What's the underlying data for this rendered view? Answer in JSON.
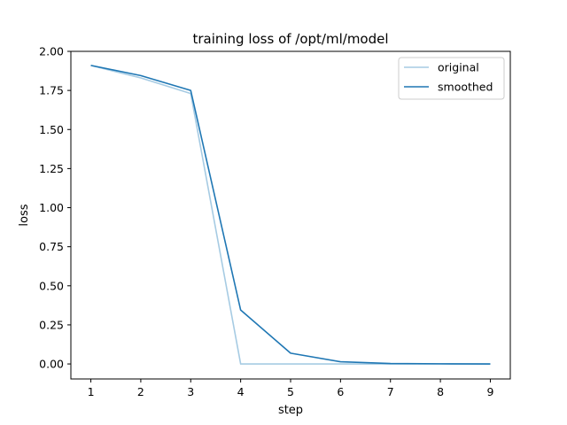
{
  "chart_data": {
    "type": "line",
    "title": "training loss of /opt/ml/model",
    "xlabel": "step",
    "ylabel": "loss",
    "x": [
      1,
      2,
      3,
      4,
      5,
      6,
      7,
      8,
      9
    ],
    "xlim": [
      0.6,
      9.4
    ],
    "ylim": [
      -0.096,
      2.0
    ],
    "xticks": [
      "1",
      "2",
      "3",
      "4",
      "5",
      "6",
      "7",
      "8",
      "9"
    ],
    "yticks": [
      "0.00",
      "0.25",
      "0.50",
      "0.75",
      "1.00",
      "1.25",
      "1.50",
      "1.75",
      "2.00"
    ],
    "grid": false,
    "legend_position": "top-right",
    "series": [
      {
        "name": "original",
        "color": "#a6cbe3",
        "values": [
          1.91,
          1.83,
          1.73,
          0.0,
          0.0,
          0.0,
          0.0,
          0.0,
          0.0
        ]
      },
      {
        "name": "smoothed",
        "color": "#1f77b4",
        "values": [
          1.91,
          1.845,
          1.75,
          0.345,
          0.069,
          0.014,
          0.003,
          0.001,
          0.0
        ]
      }
    ]
  }
}
